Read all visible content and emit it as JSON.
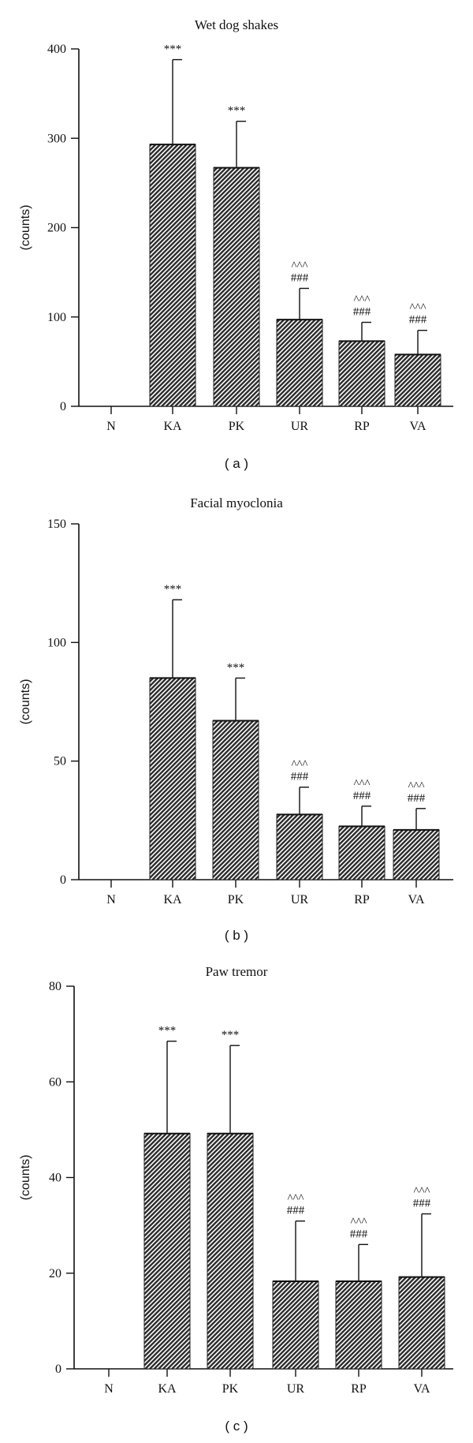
{
  "chart_data": [
    {
      "type": "bar",
      "title": "Wet dog shakes",
      "ylabel": "(counts)",
      "xlabel": "",
      "panel_label": "( a )",
      "categories": [
        "N",
        "KA",
        "PK",
        "UR",
        "RP",
        "VA"
      ],
      "values": [
        0,
        293,
        267,
        97,
        73,
        58
      ],
      "errors": [
        0,
        95,
        52,
        35,
        21,
        27
      ],
      "ylim": [
        0,
        400
      ],
      "yticks": [
        0,
        100,
        200,
        300,
        400
      ],
      "annotations": [
        [],
        [
          "***"
        ],
        [
          "***"
        ],
        [
          "^^^",
          "###"
        ],
        [
          "^^^",
          "###"
        ],
        [
          "^^^",
          "###"
        ]
      ]
    },
    {
      "type": "bar",
      "title": "Facial myoclonia",
      "ylabel": "(counts)",
      "xlabel": "",
      "panel_label": "( b )",
      "categories": [
        "N",
        "KA",
        "PK",
        "UR",
        "RP",
        "VA"
      ],
      "values": [
        0,
        85,
        67,
        27.5,
        22.5,
        21
      ],
      "errors": [
        0,
        33,
        18,
        11.5,
        8.5,
        9
      ],
      "ylim": [
        0,
        150
      ],
      "yticks": [
        0,
        50,
        100,
        150
      ],
      "annotations": [
        [],
        [
          "***"
        ],
        [
          "***"
        ],
        [
          "^^^",
          "###"
        ],
        [
          "^^^",
          "###"
        ],
        [
          "^^^",
          "###"
        ]
      ]
    },
    {
      "type": "bar",
      "title": "Paw tremor",
      "ylabel": "(counts)",
      "xlabel": "",
      "panel_label": "( c )",
      "categories": [
        "N",
        "KA",
        "PK",
        "UR",
        "RP",
        "VA"
      ],
      "values": [
        0,
        49.2,
        49.2,
        18.3,
        18.3,
        19.2
      ],
      "errors": [
        0,
        19.3,
        18.4,
        12.6,
        7.7,
        13.2
      ],
      "ylim": [
        0,
        80
      ],
      "yticks": [
        0,
        20,
        40,
        60,
        80
      ],
      "annotations": [
        [],
        [
          "***"
        ],
        [
          "***"
        ],
        [
          "^^^",
          "###"
        ],
        [
          "^^^",
          "###"
        ],
        [
          "^^^",
          "###"
        ]
      ]
    }
  ]
}
